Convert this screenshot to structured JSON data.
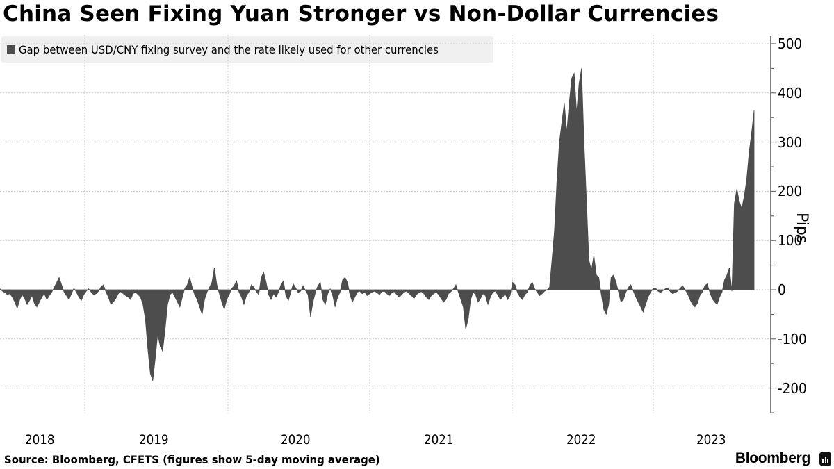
{
  "title": "China Seen Fixing Yuan Stronger vs Non-Dollar Currencies",
  "legend": {
    "label": "Gap between USD/CNY fixing survey and the rate likely used for other currencies",
    "color": "#4d4d4d"
  },
  "source": "Source: Bloomberg, CFETS (figures show 5-day moving average)",
  "brand": "Bloomberg",
  "colors": {
    "bar": "#4d4d4d",
    "grid": "#c8c8c8",
    "axis": "#555555",
    "legend_bg": "#f0f0f0"
  },
  "chart_data": {
    "type": "bar",
    "title": "China Seen Fixing Yuan Stronger vs Non-Dollar Currencies",
    "xlabel": "",
    "ylabel": "Pips",
    "ylim": [
      -250,
      520
    ],
    "yticks": [
      500,
      400,
      300,
      200,
      100,
      0,
      -100,
      -200
    ],
    "xticks": [
      "2018",
      "2019",
      "2020",
      "2021",
      "2022",
      "2023"
    ],
    "grid": true,
    "legend_position": "top-left",
    "series": [
      {
        "name": "Gap between USD/CNY fixing survey and the rate likely used for other currencies",
        "note": "5-day moving average, approx. weekly samples read from chart",
        "x_start": "2017-10",
        "x_end": "2023-05",
        "values": [
          2,
          -3,
          -6,
          -10,
          -8,
          -15,
          -25,
          -38,
          -20,
          -10,
          -18,
          -30,
          -22,
          -12,
          -28,
          -35,
          -25,
          -15,
          -8,
          -20,
          -12,
          -5,
          5,
          15,
          25,
          10,
          -5,
          -12,
          -20,
          -8,
          3,
          -5,
          -15,
          -22,
          -10,
          -3,
          2,
          -5,
          -10,
          -8,
          -3,
          6,
          10,
          -5,
          -15,
          -30,
          -25,
          -18,
          -8,
          -4,
          -8,
          -12,
          -15,
          -20,
          -8,
          -5,
          -10,
          -15,
          -30,
          -60,
          -120,
          -170,
          -185,
          -140,
          -90,
          -115,
          -125,
          -80,
          -30,
          -10,
          -5,
          -15,
          -25,
          -35,
          -15,
          3,
          10,
          25,
          5,
          -10,
          -20,
          -35,
          -50,
          -20,
          -5,
          5,
          15,
          45,
          10,
          -8,
          -25,
          -40,
          -20,
          -10,
          2,
          8,
          18,
          -5,
          -15,
          -30,
          -12,
          -5,
          10,
          5,
          -4,
          -10,
          25,
          35,
          15,
          -10,
          -20,
          -8,
          -15,
          -5,
          10,
          18,
          -12,
          -22,
          -5,
          12,
          4,
          -6,
          -3,
          8,
          -2,
          -10,
          -55,
          -25,
          -5,
          8,
          15,
          -20,
          -30,
          -8,
          2,
          -12,
          -35,
          -15,
          -5,
          20,
          25,
          15,
          -10,
          -25,
          -15,
          -5,
          -3,
          -8,
          -5,
          -12,
          -8,
          -5,
          -3,
          -6,
          -10,
          -4,
          -3,
          -8,
          -12,
          -6,
          -4,
          -10,
          -15,
          -10,
          -5,
          -3,
          -8,
          -12,
          -18,
          -10,
          -6,
          -4,
          -8,
          -15,
          -20,
          -12,
          -8,
          -5,
          -10,
          -18,
          -25,
          -20,
          -8,
          -4,
          2,
          10,
          -5,
          -20,
          -35,
          -80,
          -60,
          -20,
          -5,
          -10,
          -25,
          -18,
          -8,
          -12,
          -30,
          -15,
          -5,
          -3,
          -10,
          -20,
          -15,
          -8,
          -20,
          -12,
          15,
          10,
          -6,
          -15,
          -20,
          -10,
          -5,
          8,
          15,
          2,
          -5,
          -12,
          -8,
          -3,
          0,
          5,
          60,
          120,
          220,
          300,
          340,
          380,
          320,
          380,
          430,
          440,
          360,
          420,
          450,
          300,
          180,
          60,
          40,
          70,
          30,
          25,
          -10,
          -40,
          -50,
          -30,
          25,
          30,
          15,
          -5,
          -25,
          -20,
          -5,
          5,
          10,
          -3,
          -15,
          -25,
          -35,
          -45,
          -30,
          -15,
          -5,
          2,
          4,
          -3,
          -6,
          -2,
          2,
          4,
          -4,
          -8,
          -6,
          -3,
          3,
          8,
          0,
          -8,
          -20,
          -30,
          -35,
          -28,
          -12,
          -5,
          8,
          12,
          -5,
          -18,
          -25,
          -30,
          -15,
          -5,
          20,
          30,
          45,
          -3,
          175,
          205,
          180,
          165,
          190,
          225,
          280,
          320,
          365
        ]
      }
    ]
  }
}
